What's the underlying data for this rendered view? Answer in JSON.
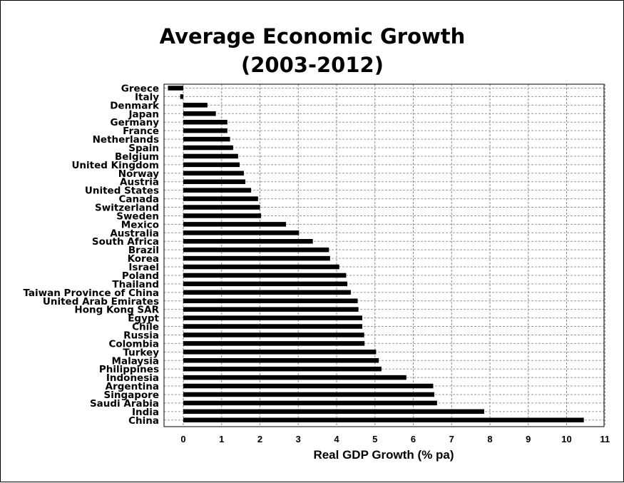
{
  "chart_data": {
    "type": "bar",
    "orientation": "horizontal",
    "title_line1": "Average Economic Growth",
    "title_line2": "(2003-2012)",
    "xlabel": "Real GDP Growth (% pa)",
    "ylabel": "",
    "xlim": [
      -0.5,
      11
    ],
    "xticks": [
      "0",
      "1",
      "2",
      "3",
      "4",
      "5",
      "6",
      "7",
      "8",
      "9",
      "10",
      "11"
    ],
    "grid": true,
    "bar_color": "#000000",
    "categories": [
      "Greece",
      "Italy",
      "Denmark",
      "Japan",
      "Germany",
      "France",
      "Netherlands",
      "Spain",
      "Belgium",
      "United Kingdom",
      "Norway",
      "Austria",
      "United States",
      "Canada",
      "Switzerland",
      "Sweden",
      "Mexico",
      "Australia",
      "South Africa",
      "Brazil",
      "Korea",
      "Israel",
      "Poland",
      "Thailand",
      "Taiwan Province of China",
      "United Arab Emirates",
      "Hong Kong SAR",
      "Egypt",
      "Chile",
      "Russia",
      "Colombia",
      "Turkey",
      "Malaysia",
      "Philippines",
      "Indonesia",
      "Argentina",
      "Singapore",
      "Saudi Arabia",
      "India",
      "China"
    ],
    "values": [
      -0.4,
      -0.08,
      0.63,
      0.85,
      1.15,
      1.15,
      1.22,
      1.3,
      1.43,
      1.47,
      1.58,
      1.62,
      1.77,
      1.95,
      2.0,
      2.03,
      2.68,
      3.02,
      3.38,
      3.8,
      3.83,
      4.07,
      4.25,
      4.28,
      4.37,
      4.55,
      4.57,
      4.67,
      4.67,
      4.72,
      4.73,
      5.03,
      5.1,
      5.17,
      5.82,
      6.52,
      6.55,
      6.62,
      7.85,
      10.45
    ]
  }
}
